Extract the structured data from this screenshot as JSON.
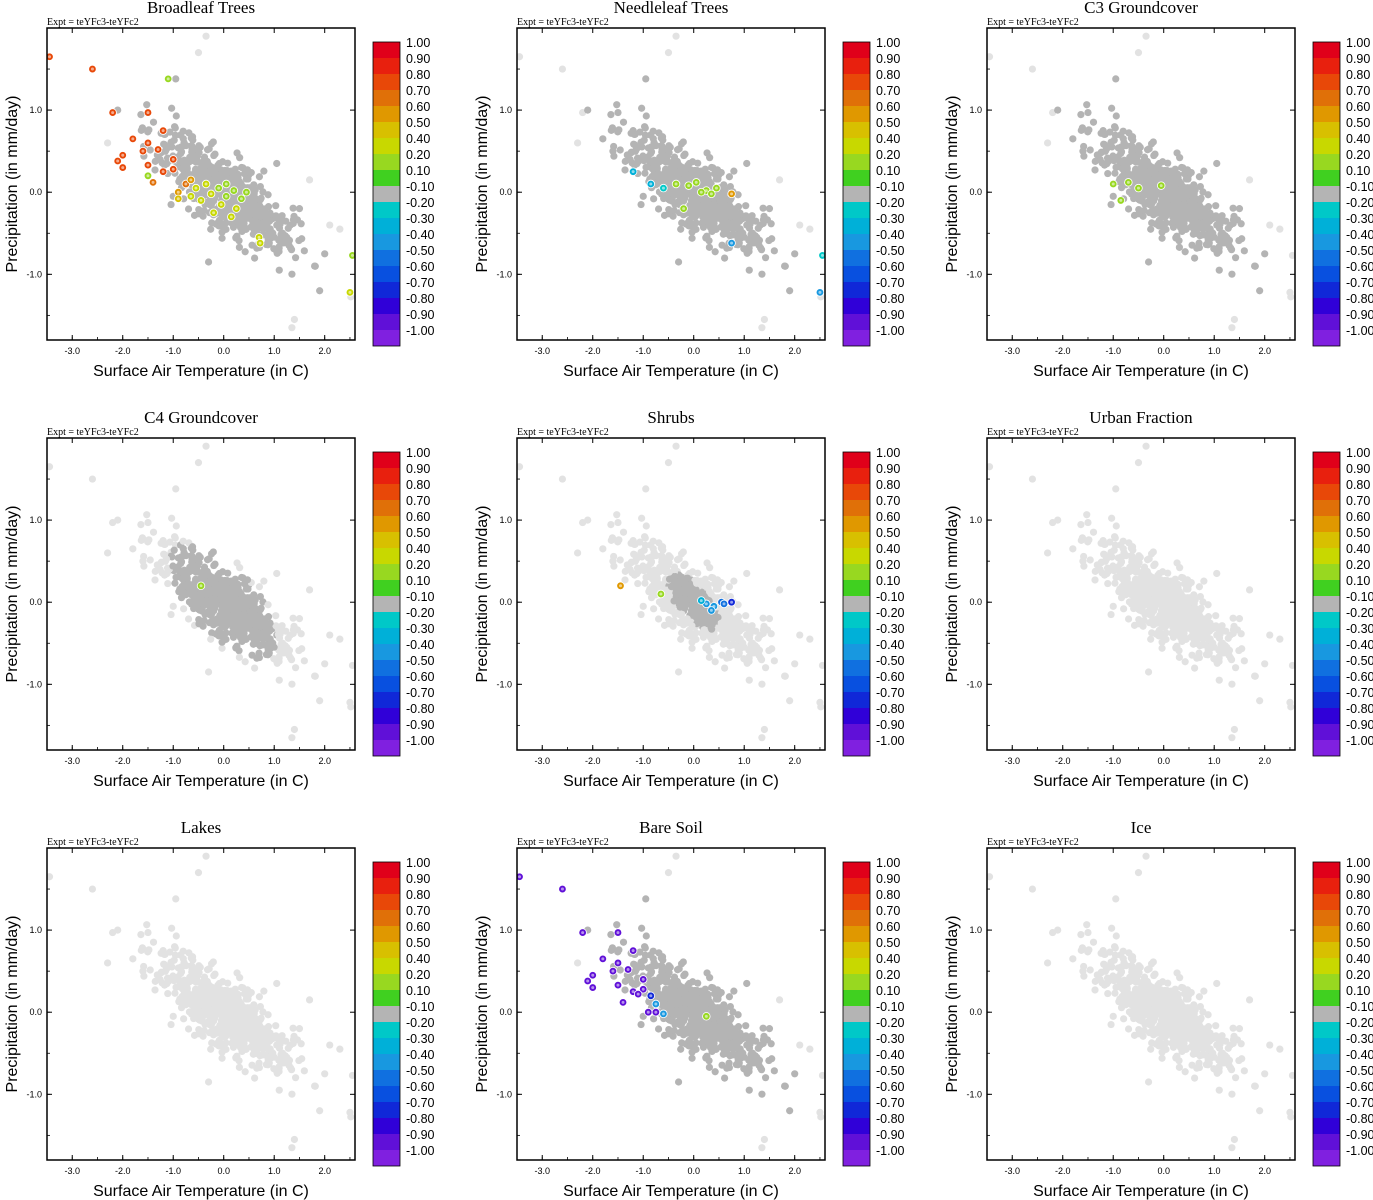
{
  "figure": {
    "xlabel": "Surface Air Temperature (in C)",
    "ylabel": "Precipitation (in mm/day)",
    "expt": "Expt = teYFc3-teYFc2"
  },
  "colorbar": {
    "labels": [
      "1.00",
      "0.90",
      "0.80",
      "0.70",
      "0.60",
      "0.50",
      "0.40",
      "0.20",
      "0.10",
      "-0.10",
      "-0.20",
      "-0.30",
      "-0.40",
      "-0.50",
      "-0.60",
      "-0.70",
      "-0.80",
      "-0.90",
      "-1.00"
    ],
    "colors": [
      "#e0001a",
      "#e8200e",
      "#e84808",
      "#e07008",
      "#e09800",
      "#d8c000",
      "#c8d800",
      "#98d820",
      "#40d020",
      "#b4b4b4",
      "#00c8c8",
      "#00b0d8",
      "#1898e0",
      "#1070e0",
      "#0850e0",
      "#1028d8",
      "#3000d8",
      "#6010d8",
      "#8020e0"
    ]
  },
  "colors": {
    "background_points": "#e2e2e2",
    "active_gray": "#b4b4b4",
    "frame": "#000000"
  },
  "chart_data": [
    {
      "type": "scatter",
      "title": "Broadleaf Trees",
      "xlabel": "Surface Air Temperature (in C)",
      "ylabel": "Precipitation (in mm/day)",
      "xlim": [
        -3.5,
        2.6
      ],
      "ylim": [
        -1.8,
        2.0
      ],
      "xticks": [
        "-3.0",
        "-2.0",
        "-1.0",
        "0.0",
        "1.0",
        "2.0"
      ],
      "yticks": [
        "1.0",
        "0.0",
        "-1.0"
      ],
      "background_cloud": true,
      "gray_cloud": "large",
      "highlighted_points": [
        {
          "x": -3.45,
          "y": 1.65,
          "r": 0.8
        },
        {
          "x": -2.6,
          "y": 1.5,
          "r": 0.8
        },
        {
          "x": -2.2,
          "y": 0.97,
          "r": 0.8
        },
        {
          "x": -1.5,
          "y": 0.97,
          "r": 0.8
        },
        {
          "x": -1.2,
          "y": 0.75,
          "r": 0.8
        },
        {
          "x": -1.8,
          "y": 0.65,
          "r": 0.8
        },
        {
          "x": -1.5,
          "y": 0.6,
          "r": 0.8
        },
        {
          "x": -1.3,
          "y": 0.52,
          "r": 0.8
        },
        {
          "x": -1.6,
          "y": 0.5,
          "r": 0.8
        },
        {
          "x": -2.0,
          "y": 0.45,
          "r": 0.8
        },
        {
          "x": -1.0,
          "y": 0.4,
          "r": 0.8
        },
        {
          "x": -2.1,
          "y": 0.38,
          "r": 0.8
        },
        {
          "x": -1.5,
          "y": 0.33,
          "r": 0.8
        },
        {
          "x": -1.2,
          "y": 0.25,
          "r": 0.8
        },
        {
          "x": -2.0,
          "y": 0.3,
          "r": 0.8
        },
        {
          "x": -1.0,
          "y": 0.28,
          "r": 0.8
        },
        {
          "x": -0.75,
          "y": 0.1,
          "r": 0.7
        },
        {
          "x": -1.4,
          "y": 0.12,
          "r": 0.7
        },
        {
          "x": -0.9,
          "y": 0.0,
          "r": 0.6
        },
        {
          "x": -0.65,
          "y": 0.15,
          "r": 0.6
        },
        {
          "x": -1.1,
          "y": 1.38,
          "r": 0.2
        },
        {
          "x": -1.5,
          "y": 0.2,
          "r": 0.2
        },
        {
          "x": -0.9,
          "y": -0.08,
          "r": 0.5
        },
        {
          "x": -0.55,
          "y": 0.05,
          "r": 0.4
        },
        {
          "x": -0.35,
          "y": 0.1,
          "r": 0.3
        },
        {
          "x": -0.25,
          "y": -0.02,
          "r": 0.4
        },
        {
          "x": -0.1,
          "y": 0.05,
          "r": 0.2
        },
        {
          "x": 0.05,
          "y": -0.05,
          "r": 0.2
        },
        {
          "x": 0.2,
          "y": 0.02,
          "r": 0.2
        },
        {
          "x": 0.35,
          "y": -0.08,
          "r": 0.2
        },
        {
          "x": 0.45,
          "y": 0.0,
          "r": 0.2
        },
        {
          "x": 0.25,
          "y": -0.2,
          "r": 0.3
        },
        {
          "x": -0.05,
          "y": -0.15,
          "r": 0.3
        },
        {
          "x": -0.45,
          "y": -0.1,
          "r": 0.4
        },
        {
          "x": 0.15,
          "y": -0.3,
          "r": 0.4
        },
        {
          "x": 0.7,
          "y": -0.55,
          "r": 0.4
        },
        {
          "x": 0.72,
          "y": -0.62,
          "r": 0.4
        },
        {
          "x": 2.55,
          "y": -0.77,
          "r": 0.2
        },
        {
          "x": 2.5,
          "y": -1.22,
          "r": 0.4
        },
        {
          "x": -0.2,
          "y": -0.25,
          "r": 0.3
        },
        {
          "x": 0.05,
          "y": 0.1,
          "r": 0.2
        },
        {
          "x": -0.65,
          "y": -0.05,
          "r": 0.4
        }
      ]
    },
    {
      "type": "scatter",
      "title": "Needleleaf Trees",
      "xlabel": "Surface Air Temperature (in C)",
      "ylabel": "Precipitation (in mm/day)",
      "xlim": [
        -3.5,
        2.6
      ],
      "ylim": [
        -1.8,
        2.0
      ],
      "xticks": [
        "-3.0",
        "-2.0",
        "-1.0",
        "0.0",
        "1.0",
        "2.0"
      ],
      "yticks": [
        "1.0",
        "0.0",
        "-1.0"
      ],
      "background_cloud": true,
      "gray_cloud": "large",
      "highlighted_points": [
        {
          "x": -0.35,
          "y": 0.1,
          "r": 0.2
        },
        {
          "x": -0.1,
          "y": 0.08,
          "r": 0.2
        },
        {
          "x": 0.05,
          "y": 0.12,
          "r": 0.2
        },
        {
          "x": 0.25,
          "y": 0.02,
          "r": 0.2
        },
        {
          "x": 0.35,
          "y": -0.02,
          "r": 0.2
        },
        {
          "x": 0.15,
          "y": 0.0,
          "r": 0.2
        },
        {
          "x": -0.2,
          "y": -0.2,
          "r": 0.2
        },
        {
          "x": 0.45,
          "y": 0.05,
          "r": 0.2
        },
        {
          "x": 0.75,
          "y": -0.02,
          "r": 0.6
        },
        {
          "x": -1.2,
          "y": 0.25,
          "r": -0.3
        },
        {
          "x": -0.85,
          "y": 0.1,
          "r": -0.3
        },
        {
          "x": 0.75,
          "y": -0.62,
          "r": -0.4
        },
        {
          "x": 2.5,
          "y": -1.22,
          "r": -0.4
        },
        {
          "x": 2.55,
          "y": -0.77,
          "r": -0.2
        },
        {
          "x": -0.6,
          "y": 0.05,
          "r": -0.2
        }
      ]
    },
    {
      "type": "scatter",
      "title": "C3 Groundcover",
      "xlabel": "Surface Air Temperature (in C)",
      "ylabel": "Precipitation (in mm/day)",
      "xlim": [
        -3.5,
        2.6
      ],
      "ylim": [
        -1.8,
        2.0
      ],
      "xticks": [
        "-3.0",
        "-2.0",
        "-1.0",
        "0.0",
        "1.0",
        "2.0"
      ],
      "yticks": [
        "1.0",
        "0.0",
        "-1.0"
      ],
      "background_cloud": true,
      "gray_cloud": "large",
      "highlighted_points": [
        {
          "x": -1.0,
          "y": 0.1,
          "r": 0.2
        },
        {
          "x": -0.7,
          "y": 0.12,
          "r": 0.2
        },
        {
          "x": -0.5,
          "y": 0.05,
          "r": 0.2
        },
        {
          "x": -0.05,
          "y": 0.08,
          "r": 0.2
        },
        {
          "x": -0.85,
          "y": -0.1,
          "r": 0.2
        }
      ]
    },
    {
      "type": "scatter",
      "title": "C4 Groundcover",
      "xlabel": "Surface Air Temperature (in C)",
      "ylabel": "Precipitation (in mm/day)",
      "xlim": [
        -3.5,
        2.6
      ],
      "ylim": [
        -1.8,
        2.0
      ],
      "xticks": [
        "-3.0",
        "-2.0",
        "-1.0",
        "0.0",
        "1.0",
        "2.0"
      ],
      "yticks": [
        "1.0",
        "0.0",
        "-1.0"
      ],
      "background_cloud": true,
      "gray_cloud": "medium",
      "highlighted_points": [
        {
          "x": -0.45,
          "y": 0.2,
          "r": 0.2
        }
      ]
    },
    {
      "type": "scatter",
      "title": "Shrubs",
      "xlabel": "Surface Air Temperature (in C)",
      "ylabel": "Precipitation (in mm/day)",
      "xlim": [
        -3.5,
        2.6
      ],
      "ylim": [
        -1.8,
        2.0
      ],
      "xticks": [
        "-3.0",
        "-2.0",
        "-1.0",
        "0.0",
        "1.0",
        "2.0"
      ],
      "yticks": [
        "1.0",
        "0.0",
        "-1.0"
      ],
      "background_cloud": true,
      "gray_cloud": "small",
      "highlighted_points": [
        {
          "x": -1.45,
          "y": 0.2,
          "r": 0.6
        },
        {
          "x": -0.65,
          "y": 0.1,
          "r": 0.2
        },
        {
          "x": 0.25,
          "y": -0.02,
          "r": -0.4
        },
        {
          "x": 0.4,
          "y": -0.05,
          "r": -0.4
        },
        {
          "x": 0.55,
          "y": 0.0,
          "r": -0.5
        },
        {
          "x": 0.15,
          "y": 0.02,
          "r": -0.3
        },
        {
          "x": 0.35,
          "y": -0.1,
          "r": -0.4
        },
        {
          "x": 0.6,
          "y": -0.02,
          "r": -0.5
        },
        {
          "x": 0.75,
          "y": 0.0,
          "r": -0.7
        }
      ]
    },
    {
      "type": "scatter",
      "title": "Urban Fraction",
      "xlabel": "Surface Air Temperature (in C)",
      "ylabel": "Precipitation (in mm/day)",
      "xlim": [
        -3.5,
        2.6
      ],
      "ylim": [
        -1.8,
        2.0
      ],
      "xticks": [
        "-3.0",
        "-2.0",
        "-1.0",
        "0.0",
        "1.0",
        "2.0"
      ],
      "yticks": [
        "1.0",
        "0.0",
        "-1.0"
      ],
      "background_cloud": true,
      "gray_cloud": "none",
      "highlighted_points": []
    },
    {
      "type": "scatter",
      "title": "Lakes",
      "xlabel": "Surface Air Temperature (in C)",
      "ylabel": "Precipitation (in mm/day)",
      "xlim": [
        -3.5,
        2.6
      ],
      "ylim": [
        -1.8,
        2.0
      ],
      "xticks": [
        "-3.0",
        "-2.0",
        "-1.0",
        "0.0",
        "1.0",
        "2.0"
      ],
      "yticks": [
        "1.0",
        "0.0",
        "-1.0"
      ],
      "background_cloud": true,
      "gray_cloud": "none",
      "highlighted_points": []
    },
    {
      "type": "scatter",
      "title": "Bare Soil",
      "xlabel": "Surface Air Temperature (in C)",
      "ylabel": "Precipitation (in mm/day)",
      "xlim": [
        -3.5,
        2.6
      ],
      "ylim": [
        -1.8,
        2.0
      ],
      "xticks": [
        "-3.0",
        "-2.0",
        "-1.0",
        "0.0",
        "1.0",
        "2.0"
      ],
      "yticks": [
        "1.0",
        "0.0",
        "-1.0"
      ],
      "background_cloud": true,
      "gray_cloud": "large",
      "highlighted_points": [
        {
          "x": -3.45,
          "y": 1.65,
          "r": -0.9
        },
        {
          "x": -2.6,
          "y": 1.5,
          "r": -0.9
        },
        {
          "x": -2.2,
          "y": 0.97,
          "r": -0.9
        },
        {
          "x": -1.5,
          "y": 0.97,
          "r": -0.9
        },
        {
          "x": -1.2,
          "y": 0.75,
          "r": -0.9
        },
        {
          "x": -1.8,
          "y": 0.65,
          "r": -0.9
        },
        {
          "x": -1.5,
          "y": 0.6,
          "r": -0.9
        },
        {
          "x": -1.3,
          "y": 0.52,
          "r": -0.9
        },
        {
          "x": -1.6,
          "y": 0.5,
          "r": -0.9
        },
        {
          "x": -2.0,
          "y": 0.45,
          "r": -0.9
        },
        {
          "x": -1.0,
          "y": 0.4,
          "r": -0.9
        },
        {
          "x": -2.1,
          "y": 0.38,
          "r": -0.9
        },
        {
          "x": -1.5,
          "y": 0.33,
          "r": -0.9
        },
        {
          "x": -1.2,
          "y": 0.25,
          "r": -0.9
        },
        {
          "x": -2.0,
          "y": 0.3,
          "r": -0.9
        },
        {
          "x": -1.0,
          "y": 0.28,
          "r": -0.9
        },
        {
          "x": -1.4,
          "y": 0.12,
          "r": -0.9
        },
        {
          "x": -0.9,
          "y": 0.0,
          "r": -0.9
        },
        {
          "x": -1.1,
          "y": 0.22,
          "r": -0.9
        },
        {
          "x": -0.75,
          "y": 0.0,
          "r": -0.9
        },
        {
          "x": -0.75,
          "y": 0.1,
          "r": -0.4
        },
        {
          "x": -0.6,
          "y": -0.02,
          "r": -0.4
        },
        {
          "x": -0.85,
          "y": 0.2,
          "r": -0.7
        },
        {
          "x": 0.25,
          "y": -0.05,
          "r": 0.2
        }
      ]
    },
    {
      "type": "scatter",
      "title": "Ice",
      "xlabel": "Surface Air Temperature (in C)",
      "ylabel": "Precipitation (in mm/day)",
      "xlim": [
        -3.5,
        2.6
      ],
      "ylim": [
        -1.8,
        2.0
      ],
      "xticks": [
        "-3.0",
        "-2.0",
        "-1.0",
        "0.0",
        "1.0",
        "2.0"
      ],
      "yticks": [
        "1.0",
        "0.0",
        "-1.0"
      ],
      "background_cloud": true,
      "gray_cloud": "none",
      "highlighted_points": []
    }
  ]
}
